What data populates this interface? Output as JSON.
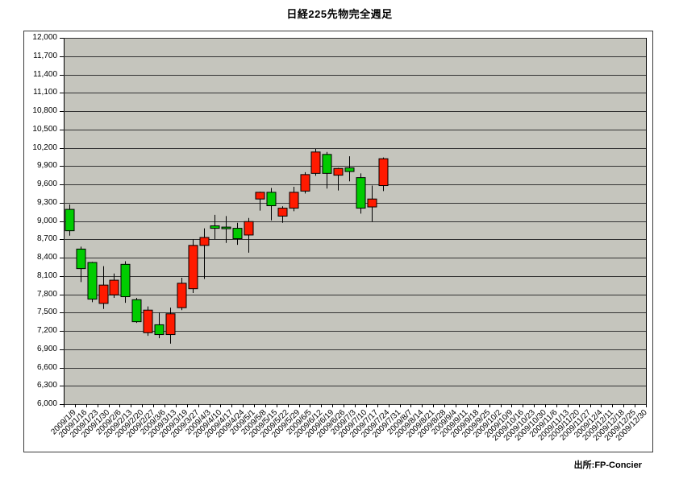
{
  "chart_data": {
    "type": "candlestick",
    "title": "日経225先物完全週足",
    "source": "出所:FP-Concier",
    "grid": true,
    "legend": false,
    "y_axis": {
      "min": 6000,
      "max": 12000,
      "step": 300,
      "tick_labels": [
        "12,000",
        "11,700",
        "11,400",
        "11,100",
        "10,800",
        "10,500",
        "10,200",
        "9,900",
        "9,600",
        "9,300",
        "9,000",
        "8,700",
        "8,400",
        "8,100",
        "7,800",
        "7,500",
        "7,200",
        "6,900",
        "6,600",
        "6,300",
        "6,000"
      ]
    },
    "x_axis": {
      "labels_rotation": -45
    },
    "x_labels": [
      "2009/1/9",
      "2009/1/16",
      "2009/1/23",
      "2009/1/30",
      "2009/2/6",
      "2009/2/13",
      "2009/2/20",
      "2009/2/27",
      "2009/3/6",
      "2009/3/13",
      "2009/3/19",
      "2009/3/27",
      "2009/4/3",
      "2009/4/10",
      "2009/4/17",
      "2009/4/24",
      "2009/5/1",
      "2009/5/8",
      "2009/5/15",
      "2009/5/22",
      "2009/5/29",
      "2009/6/5",
      "2009/6/12",
      "2009/6/19",
      "2009/6/26",
      "2009/7/3",
      "2009/7/10",
      "2009/7/17",
      "2009/7/24",
      "2009/7/31",
      "2009/8/7",
      "2009/8/14",
      "2009/8/21",
      "2009/8/28",
      "2009/9/4",
      "2009/9/11",
      "2009/9/18",
      "2009/9/25",
      "2009/10/2",
      "2009/10/9",
      "2009/10/16",
      "2009/10/23",
      "2009/10/30",
      "2009/11/6",
      "2009/11/13",
      "2009/11/20",
      "2009/11/27",
      "2009/12/4",
      "2009/12/11",
      "2009/12/18",
      "2009/12/25",
      "2009/12/30"
    ],
    "candles": [
      {
        "date": "2009/1/9",
        "open": 9190,
        "high": 9270,
        "low": 8760,
        "close": 8840
      },
      {
        "date": "2009/1/16",
        "open": 8540,
        "high": 8580,
        "low": 8000,
        "close": 8220
      },
      {
        "date": "2009/1/23",
        "open": 8320,
        "high": 8330,
        "low": 7670,
        "close": 7720
      },
      {
        "date": "2009/1/30",
        "open": 7650,
        "high": 8260,
        "low": 7560,
        "close": 7950
      },
      {
        "date": "2009/2/6",
        "open": 7790,
        "high": 8140,
        "low": 7740,
        "close": 8030
      },
      {
        "date": "2009/2/13",
        "open": 8290,
        "high": 8340,
        "low": 7660,
        "close": 7760
      },
      {
        "date": "2009/2/20",
        "open": 7710,
        "high": 7740,
        "low": 7330,
        "close": 7350
      },
      {
        "date": "2009/2/27",
        "open": 7170,
        "high": 7600,
        "low": 7120,
        "close": 7540
      },
      {
        "date": "2009/3/6",
        "open": 7300,
        "high": 7500,
        "low": 7080,
        "close": 7140
      },
      {
        "date": "2009/3/13",
        "open": 7140,
        "high": 7580,
        "low": 6990,
        "close": 7480
      },
      {
        "date": "2009/3/19",
        "open": 7580,
        "high": 8070,
        "low": 7540,
        "close": 7980
      },
      {
        "date": "2009/3/27",
        "open": 7890,
        "high": 8700,
        "low": 7820,
        "close": 8600
      },
      {
        "date": "2009/4/3",
        "open": 8600,
        "high": 8880,
        "low": 8050,
        "close": 8730
      },
      {
        "date": "2009/4/10",
        "open": 8920,
        "high": 9100,
        "low": 8700,
        "close": 8880
      },
      {
        "date": "2009/4/17",
        "open": 8900,
        "high": 9080,
        "low": 8640,
        "close": 8890
      },
      {
        "date": "2009/4/24",
        "open": 8880,
        "high": 8970,
        "low": 8610,
        "close": 8710
      },
      {
        "date": "2009/5/1",
        "open": 8770,
        "high": 9050,
        "low": 8480,
        "close": 8990
      },
      {
        "date": "2009/5/8",
        "open": 9360,
        "high": 9480,
        "low": 9170,
        "close": 9470
      },
      {
        "date": "2009/5/15",
        "open": 9470,
        "high": 9540,
        "low": 9010,
        "close": 9250
      },
      {
        "date": "2009/5/22",
        "open": 9080,
        "high": 9240,
        "low": 8970,
        "close": 9210
      },
      {
        "date": "2009/5/29",
        "open": 9210,
        "high": 9560,
        "low": 9160,
        "close": 9470
      },
      {
        "date": "2009/6/5",
        "open": 9490,
        "high": 9800,
        "low": 9450,
        "close": 9760
      },
      {
        "date": "2009/6/12",
        "open": 9780,
        "high": 10180,
        "low": 9740,
        "close": 10130
      },
      {
        "date": "2009/6/19",
        "open": 10090,
        "high": 10130,
        "low": 9530,
        "close": 9780
      },
      {
        "date": "2009/6/26",
        "open": 9750,
        "high": 9870,
        "low": 9500,
        "close": 9860
      },
      {
        "date": "2009/7/3",
        "open": 9870,
        "high": 10060,
        "low": 9650,
        "close": 9810
      },
      {
        "date": "2009/7/10",
        "open": 9710,
        "high": 9780,
        "low": 9120,
        "close": 9210
      },
      {
        "date": "2009/7/17",
        "open": 9230,
        "high": 9580,
        "low": 8990,
        "close": 9360
      },
      {
        "date": "2009/7/24",
        "open": 9580,
        "high": 10040,
        "low": 9490,
        "close": 10020
      }
    ],
    "colors": {
      "bullish": "#ff1a00",
      "bearish": "#00cc00",
      "plot_background": "#c5c5bd",
      "grid": "#333333",
      "outline": "#000000",
      "outer_border": "#3a3a3a"
    }
  }
}
